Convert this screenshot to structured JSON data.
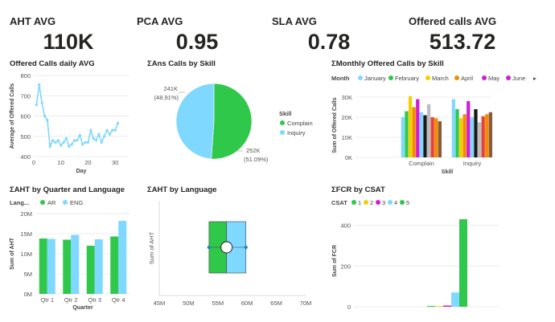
{
  "kpis": {
    "aht": {
      "title": "AHT AVG",
      "value": "110K"
    },
    "pca": {
      "title": "PCA AVG",
      "value": "0.95"
    },
    "sla": {
      "title": "SLA AVG",
      "value": "0.78"
    },
    "offered": {
      "title": "Offered calls AVG",
      "value": "513.72"
    }
  },
  "colors": {
    "cyan": "#7fd8ff",
    "green": "#2fc84a",
    "yellow": "#f2d000",
    "orange": "#f28c00",
    "magenta": "#d21ed2",
    "black": "#1a1a1a",
    "grey": "#bdbdbd",
    "red": "#e8403a",
    "brown": "#8b5a3c"
  },
  "chart_data": [
    {
      "id": "daily",
      "type": "line",
      "title": "Offered Calls daily AVG",
      "xlabel": "Day",
      "ylabel": "Average of Offered Calls",
      "xlim": [
        0,
        35
      ],
      "ylim": [
        400,
        800
      ],
      "yticks": [
        "400",
        "500",
        "600",
        "700",
        "800"
      ],
      "xticks": [
        "0",
        "10",
        "20",
        "30"
      ],
      "x": [
        1,
        2,
        3,
        4,
        5,
        6,
        7,
        8,
        9,
        10,
        11,
        12,
        13,
        14,
        15,
        16,
        17,
        18,
        19,
        20,
        21,
        22,
        23,
        24,
        25,
        26,
        27,
        28,
        29,
        30,
        31
      ],
      "values": [
        655,
        755,
        665,
        600,
        580,
        450,
        480,
        470,
        480,
        455,
        470,
        490,
        450,
        460,
        480,
        480,
        505,
        460,
        470,
        470,
        530,
        490,
        480,
        510,
        470,
        500,
        530,
        510,
        530,
        530,
        565
      ]
    },
    {
      "id": "ans",
      "type": "pie",
      "title": "ΣAns Calls by Skill",
      "legend_title": "Skill",
      "slices": [
        {
          "name": "Complain",
          "value": 252000,
          "label": "252K",
          "pct": "(51.09%)"
        },
        {
          "name": "Inquiry",
          "value": 241000,
          "label": "241K",
          "pct": "(48.91%)"
        }
      ]
    },
    {
      "id": "monthly",
      "type": "bar",
      "title": "ΣMonthly Offered Calls by Skill",
      "legend_title": "Month",
      "legend": [
        "January",
        "February",
        "March",
        "April",
        "May",
        "June"
      ],
      "ylabel": "Sum of Offered Calls",
      "xlabel": "Skill",
      "yticks": [
        "0K",
        "10K",
        "20K",
        "30K"
      ],
      "ylim": [
        0,
        32000
      ],
      "categories": [
        "Complain",
        "Inquiry"
      ],
      "series": [
        {
          "values": [
            20000,
            29000
          ]
        },
        {
          "values": [
            23000,
            24000
          ]
        },
        {
          "values": [
            30500,
            19500
          ]
        },
        {
          "values": [
            25000,
            21500
          ]
        },
        {
          "values": [
            29000,
            28000
          ]
        },
        {
          "values": [
            22500,
            20000
          ]
        },
        {
          "values": [
            21000,
            24000
          ]
        },
        {
          "values": [
            26500,
            17500
          ]
        },
        {
          "values": [
            20000,
            20500
          ]
        },
        {
          "values": [
            19500,
            21500
          ]
        },
        {
          "values": [
            18000,
            22500
          ]
        }
      ]
    },
    {
      "id": "quarter",
      "type": "bar",
      "title": "ΣAHT by Quarter and Language",
      "legend_title": "Lang...",
      "ylabel": "Sum of AHT",
      "xlabel": "Quarter",
      "yticks": [
        "0M",
        "5M",
        "10M",
        "15M",
        "20M"
      ],
      "ylim": [
        0,
        20000000
      ],
      "categories": [
        "Qtr 1",
        "Qtr 2",
        "Qtr 3",
        "Qtr 4"
      ],
      "series": [
        {
          "name": "AR",
          "values": [
            13800000,
            13500000,
            12000000,
            14300000
          ]
        },
        {
          "name": "ENG",
          "values": [
            13700000,
            14700000,
            13600000,
            18200000
          ]
        }
      ]
    },
    {
      "id": "language",
      "type": "bar",
      "title": "ΣAHT by Language",
      "ylabel": "Sum of AHT",
      "xlim": [
        45000000,
        70000000
      ],
      "xticks": [
        "45M",
        "50M",
        "55M",
        "60M",
        "65M",
        "70M"
      ],
      "boxes": [
        {
          "from": 53500000,
          "to": 56500000
        },
        {
          "from": 56500000,
          "to": 59800000
        }
      ],
      "marker": 56500000
    },
    {
      "id": "fcr",
      "type": "bar",
      "title": "ΣFCR by CSAT",
      "legend_title": "CSAT",
      "legend": [
        "1",
        "2",
        "3",
        "4",
        "5"
      ],
      "ylabel": "Sum of FCR",
      "yticks": [
        "0",
        "200",
        "400"
      ],
      "ylim": [
        0,
        450
      ],
      "values": [
        4,
        2,
        6,
        70,
        430
      ]
    }
  ]
}
